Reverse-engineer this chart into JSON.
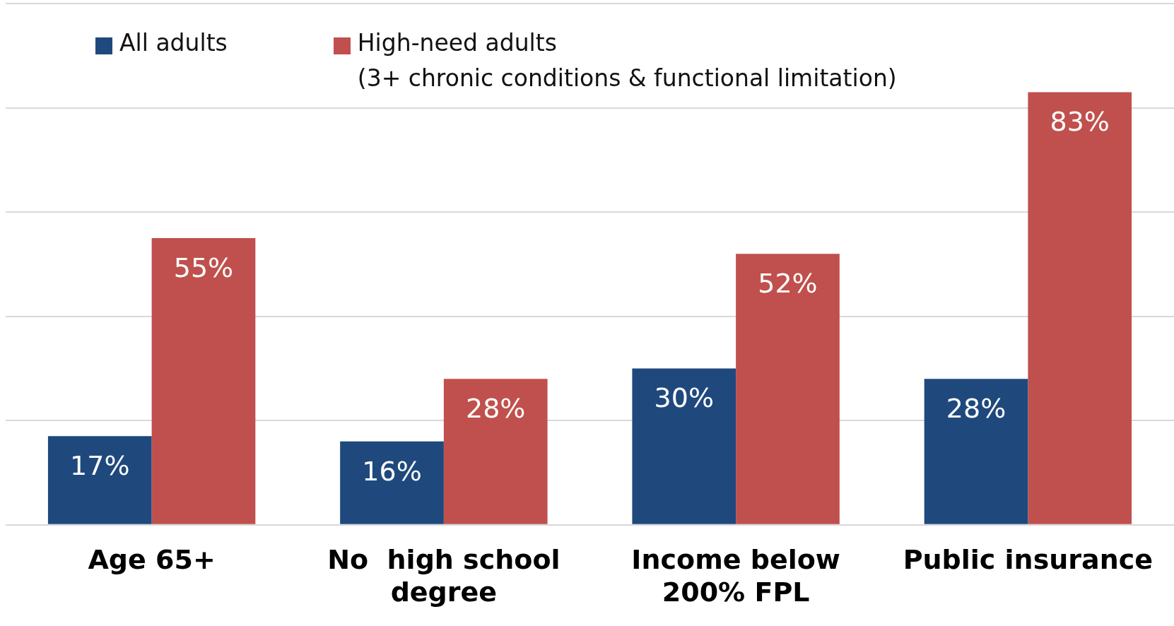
{
  "chart_data": {
    "type": "bar",
    "categories": [
      "Age 65+",
      "No  high school degree",
      "Income below 200% FPL",
      "Public insurance"
    ],
    "series": [
      {
        "name": "All adults",
        "color": "#1f497d",
        "values": [
          17,
          16,
          30,
          28
        ],
        "value_labels": [
          "17%",
          "16%",
          "30%",
          "28%"
        ]
      },
      {
        "name": "High-need adults (3+ chronic conditions & functional limitation)",
        "color": "#c0504d",
        "values": [
          55,
          28,
          52,
          83
        ],
        "value_labels": [
          "55%",
          "28%",
          "52%",
          "83%"
        ]
      }
    ],
    "tick_labels": "x",
    "grid": "y",
    "legend": "top left"
  }
}
